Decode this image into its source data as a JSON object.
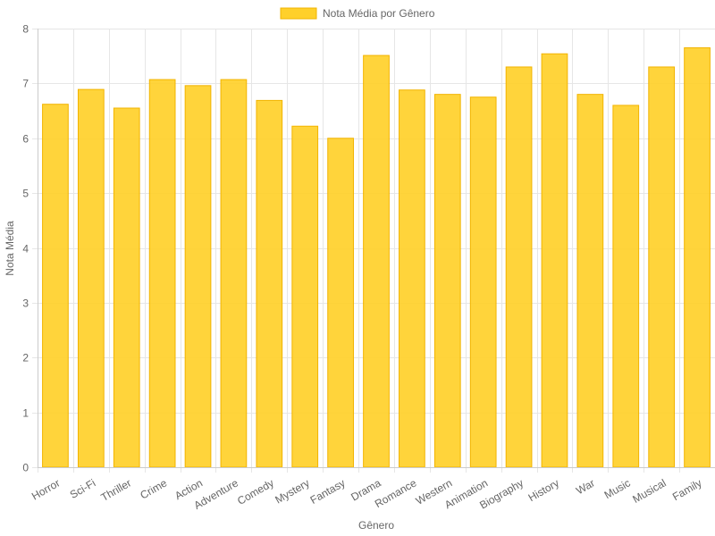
{
  "chart_data": {
    "type": "bar",
    "title": "",
    "xlabel": "Gênero",
    "ylabel": "Nota Média",
    "ylim": [
      0,
      8
    ],
    "yticks": [
      0,
      1,
      2,
      3,
      4,
      5,
      6,
      7,
      8
    ],
    "grid": true,
    "legend_position": "top-center",
    "categories": [
      "Horror",
      "Sci-Fi",
      "Thriller",
      "Crime",
      "Action",
      "Adventure",
      "Comedy",
      "Mystery",
      "Fantasy",
      "Drama",
      "Romance",
      "Western",
      "Animation",
      "Biography",
      "History",
      "War",
      "Music",
      "Musical",
      "Family"
    ],
    "series": [
      {
        "name": "Nota Média por Gênero",
        "values": [
          6.62,
          6.89,
          6.55,
          7.07,
          6.96,
          7.07,
          6.69,
          6.22,
          6.0,
          7.51,
          6.88,
          6.8,
          6.75,
          7.3,
          7.54,
          6.8,
          6.6,
          7.3,
          7.65
        ]
      }
    ],
    "colors": {
      "bar_fill": "#FFD02A",
      "bar_border": "#F2B400",
      "grid": "#E6E6E6",
      "axis": "#CCCCCC",
      "text": "#666666"
    }
  }
}
